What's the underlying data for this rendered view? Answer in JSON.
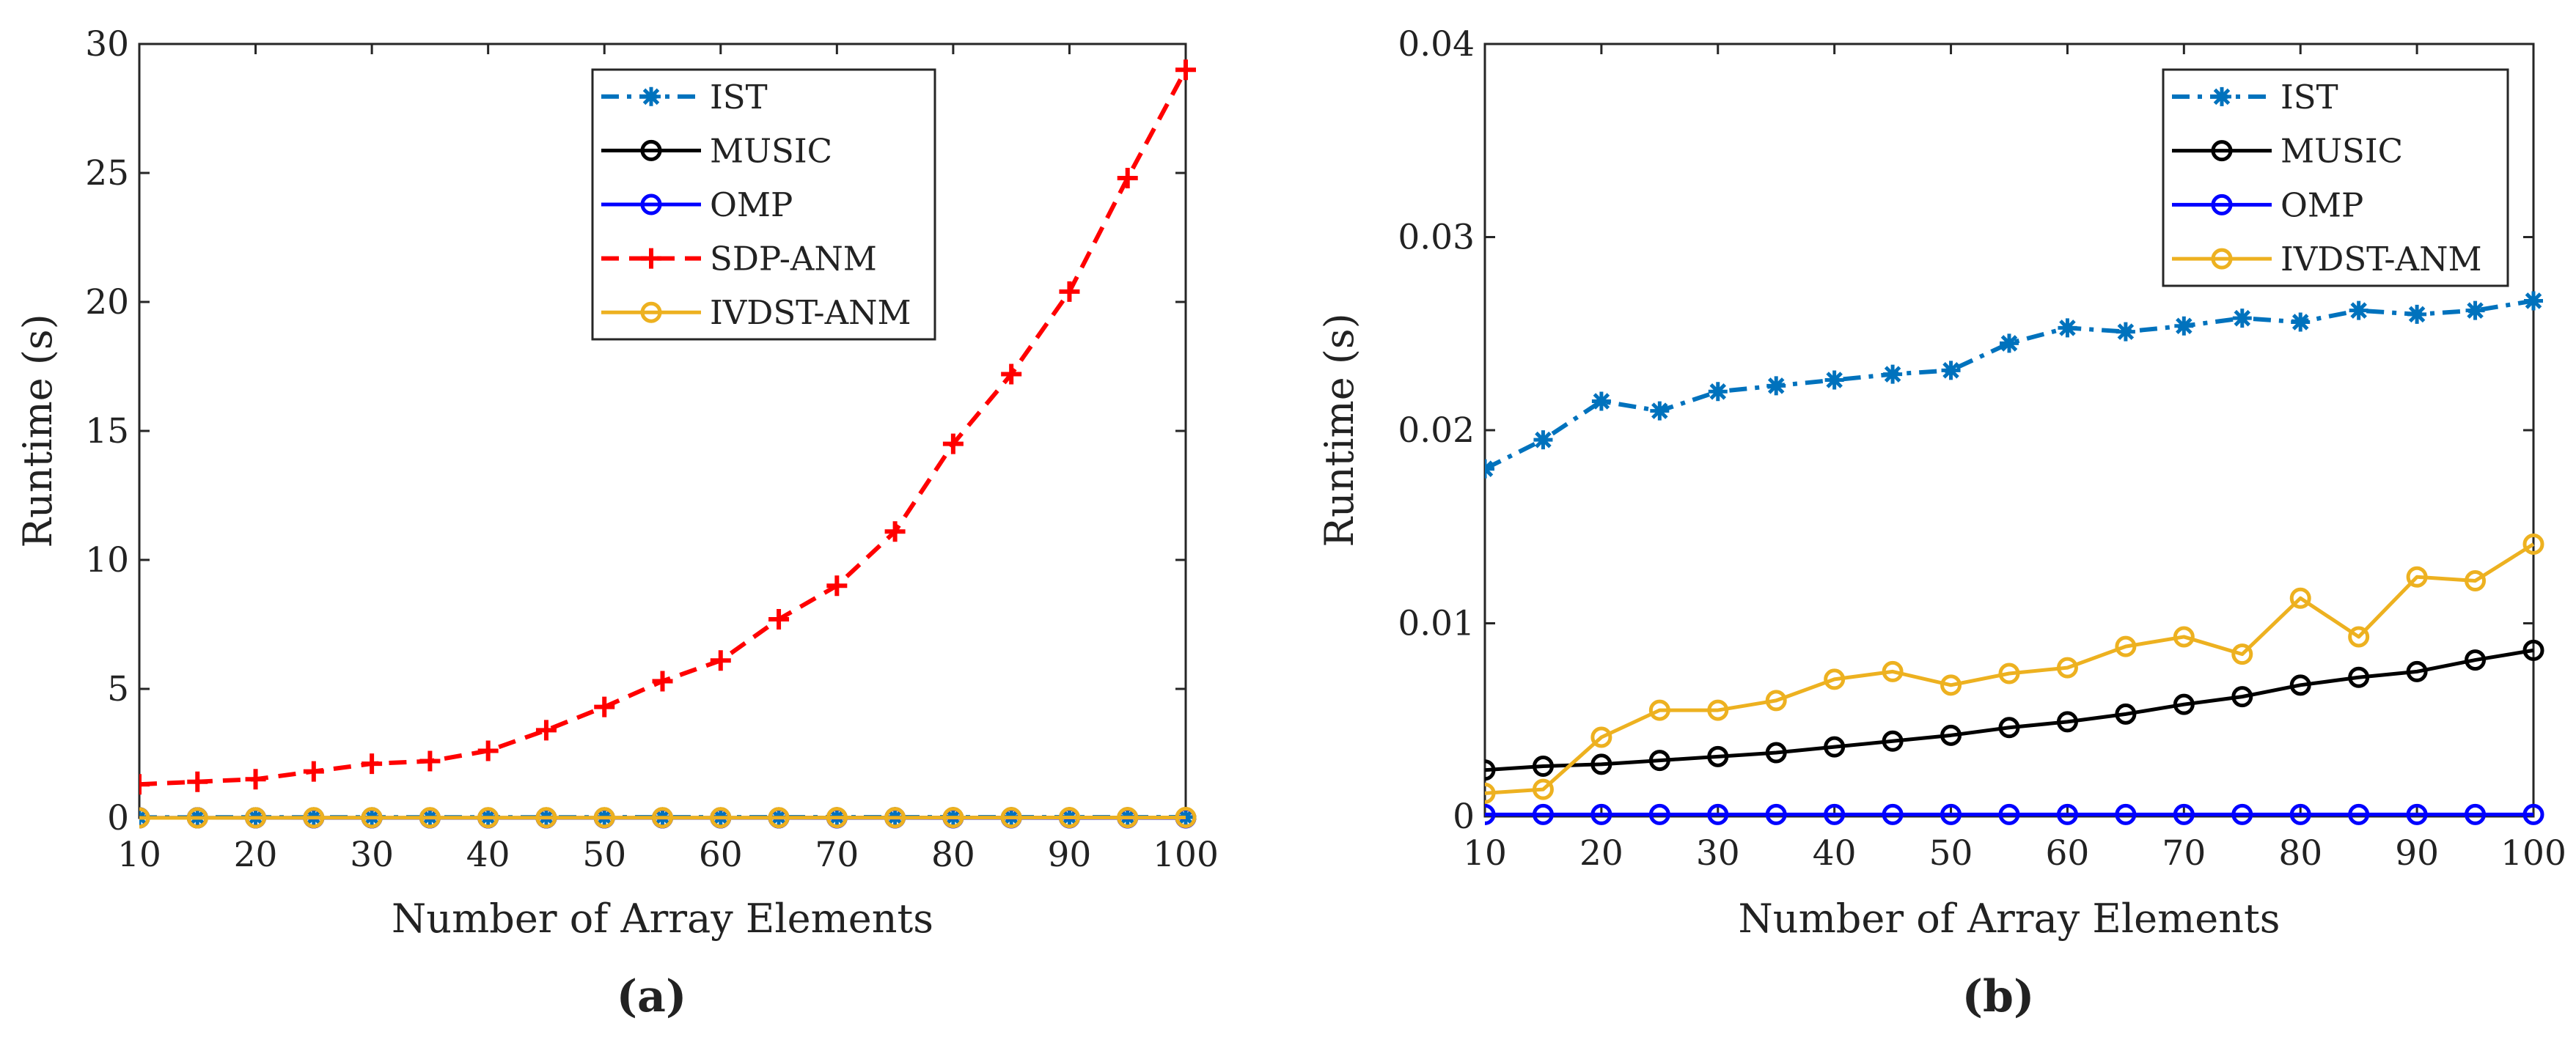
{
  "chart_data": [
    {
      "type": "line",
      "panel_label": "(a)",
      "xlabel": "Number of Array Elements",
      "ylabel": "Runtime (s)",
      "xlim": [
        10,
        100
      ],
      "ylim": [
        0,
        30
      ],
      "xticks": [
        10,
        20,
        30,
        40,
        50,
        60,
        70,
        80,
        90,
        100
      ],
      "yticks": [
        0,
        5,
        10,
        15,
        20,
        25,
        30
      ],
      "x": [
        10,
        15,
        20,
        25,
        30,
        35,
        40,
        45,
        50,
        55,
        60,
        65,
        70,
        75,
        80,
        85,
        90,
        95,
        100
      ],
      "legend_position": "top-right",
      "series": [
        {
          "name": "IST",
          "color": "#0072BD",
          "style": "dashdot",
          "marker": "asterisk",
          "values": [
            0.018,
            0.0195,
            0.0215,
            0.021,
            0.022,
            0.0223,
            0.0226,
            0.0229,
            0.0231,
            0.0245,
            0.0253,
            0.0251,
            0.0254,
            0.0258,
            0.0256,
            0.0262,
            0.026,
            0.0262,
            0.0267
          ]
        },
        {
          "name": "MUSIC",
          "color": "#000000",
          "style": "solid",
          "marker": "circle",
          "values": [
            0.0024,
            0.0026,
            0.0027,
            0.0029,
            0.0031,
            0.0033,
            0.0036,
            0.0039,
            0.0042,
            0.0046,
            0.0049,
            0.0053,
            0.0058,
            0.0062,
            0.0068,
            0.0072,
            0.0075,
            0.0081,
            0.0086
          ]
        },
        {
          "name": "OMP",
          "color": "#0000FF",
          "style": "solid",
          "marker": "circle",
          "values": [
            0.0001,
            0.0001,
            0.0001,
            0.0001,
            0.0001,
            0.0001,
            0.0001,
            0.0001,
            0.0001,
            0.0001,
            0.0001,
            0.0001,
            0.0001,
            0.0001,
            0.0001,
            0.0001,
            0.0001,
            0.0001,
            0.0001
          ]
        },
        {
          "name": "SDP-ANM",
          "color": "#FF0000",
          "style": "dashed",
          "marker": "plus",
          "values": [
            1.3,
            1.4,
            1.5,
            1.8,
            2.1,
            2.2,
            2.6,
            3.4,
            4.3,
            5.3,
            6.1,
            7.7,
            9.0,
            11.1,
            14.5,
            17.2,
            20.4,
            24.8,
            29.0
          ]
        },
        {
          "name": "IVDST-ANM",
          "color": "#EDB120",
          "style": "solid",
          "marker": "circle",
          "values": [
            0.0012,
            0.0014,
            0.0041,
            0.0055,
            0.0055,
            0.006,
            0.0071,
            0.0075,
            0.0068,
            0.0074,
            0.0077,
            0.0088,
            0.0093,
            0.0084,
            0.0113,
            0.0093,
            0.0124,
            0.0122,
            0.0141
          ]
        }
      ]
    },
    {
      "type": "line",
      "panel_label": "(b)",
      "xlabel": "Number of Array Elements",
      "ylabel": "Runtime (s)",
      "xlim": [
        10,
        100
      ],
      "ylim": [
        0,
        0.04
      ],
      "xticks": [
        10,
        20,
        30,
        40,
        50,
        60,
        70,
        80,
        90,
        100
      ],
      "yticks": [
        0,
        0.01,
        0.02,
        0.03,
        0.04
      ],
      "x": [
        10,
        15,
        20,
        25,
        30,
        35,
        40,
        45,
        50,
        55,
        60,
        65,
        70,
        75,
        80,
        85,
        90,
        95,
        100
      ],
      "legend_position": "top-right",
      "series": [
        {
          "name": "IST",
          "color": "#0072BD",
          "style": "dashdot",
          "marker": "asterisk",
          "values": [
            0.018,
            0.0195,
            0.0215,
            0.021,
            0.022,
            0.0223,
            0.0226,
            0.0229,
            0.0231,
            0.0245,
            0.0253,
            0.0251,
            0.0254,
            0.0258,
            0.0256,
            0.0262,
            0.026,
            0.0262,
            0.0267
          ]
        },
        {
          "name": "MUSIC",
          "color": "#000000",
          "style": "solid",
          "marker": "circle",
          "values": [
            0.0024,
            0.0026,
            0.0027,
            0.0029,
            0.0031,
            0.0033,
            0.0036,
            0.0039,
            0.0042,
            0.0046,
            0.0049,
            0.0053,
            0.0058,
            0.0062,
            0.0068,
            0.0072,
            0.0075,
            0.0081,
            0.0086
          ]
        },
        {
          "name": "OMP",
          "color": "#0000FF",
          "style": "solid",
          "marker": "circle",
          "values": [
            0.0001,
            0.0001,
            0.0001,
            0.0001,
            0.0001,
            0.0001,
            0.0001,
            0.0001,
            0.0001,
            0.0001,
            0.0001,
            0.0001,
            0.0001,
            0.0001,
            0.0001,
            0.0001,
            0.0001,
            0.0001,
            0.0001
          ]
        },
        {
          "name": "IVDST-ANM",
          "color": "#EDB120",
          "style": "solid",
          "marker": "circle",
          "values": [
            0.0012,
            0.0014,
            0.0041,
            0.0055,
            0.0055,
            0.006,
            0.0071,
            0.0075,
            0.0068,
            0.0074,
            0.0077,
            0.0088,
            0.0093,
            0.0084,
            0.0113,
            0.0093,
            0.0124,
            0.0122,
            0.0141
          ]
        }
      ]
    }
  ]
}
